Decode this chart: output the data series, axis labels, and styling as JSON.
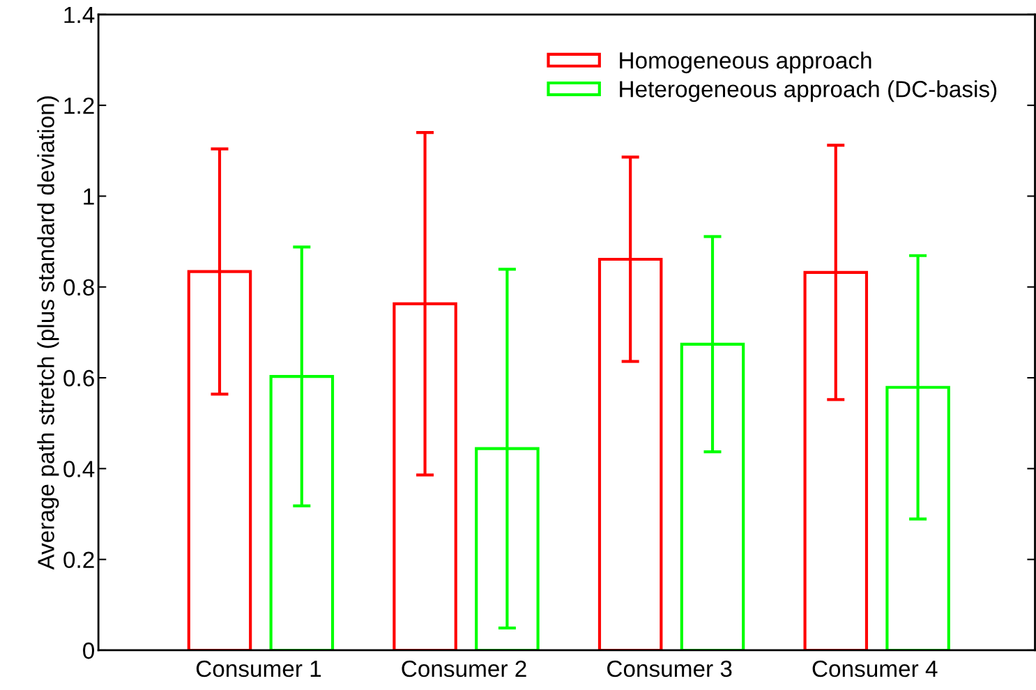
{
  "chart_data": {
    "type": "bar",
    "ylabel": "Average path stretch (plus standard deviation)",
    "categories": [
      "Consumer 1",
      "Consumer 2",
      "Consumer 3",
      "Consumer 4"
    ],
    "series": [
      {
        "name": "Homogeneous approach",
        "color": "#ff0000",
        "values": [
          0.834,
          0.763,
          0.861,
          0.832
        ],
        "errors": [
          0.27,
          0.377,
          0.225,
          0.28
        ]
      },
      {
        "name": "Heterogeneous approach (DC-basis)",
        "color": "#00ff00",
        "values": [
          0.603,
          0.444,
          0.674,
          0.579
        ],
        "errors": [
          0.285,
          0.395,
          0.237,
          0.29
        ]
      }
    ],
    "ylim": [
      0,
      1.4
    ],
    "yticks": [
      0,
      0.2,
      0.4,
      0.6,
      0.8,
      1,
      1.2,
      1.4
    ],
    "grid": false,
    "legend": "top right"
  }
}
